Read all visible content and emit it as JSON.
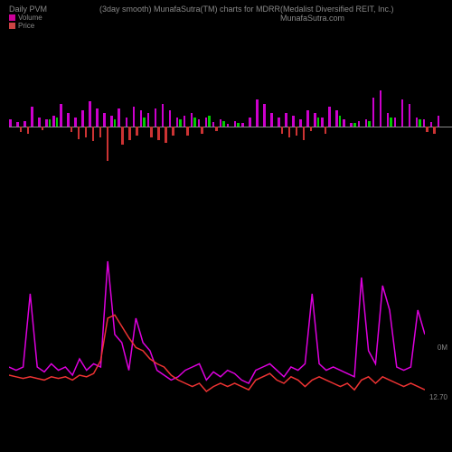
{
  "header": {
    "title_left": "Daily PVM",
    "title_center_left": "(3day smooth) MunafaSutra(TM) charts for MDRR",
    "title_center_right": "(Medalist Diversified REIT, Inc.) MunafaSutra.com"
  },
  "legend": {
    "volume": {
      "label": "Volume",
      "color": "#cc0099"
    },
    "price": {
      "label": "Price",
      "color": "#cc4444"
    }
  },
  "bar_chart": {
    "baseline_color": "#888888",
    "background": "#000000",
    "bars": [
      {
        "magenta": 8,
        "green": 0,
        "red": 0
      },
      {
        "magenta": 5,
        "green": 0,
        "red": 6
      },
      {
        "magenta": 6,
        "green": 0,
        "red": 8
      },
      {
        "magenta": 22,
        "green": 0,
        "red": 0
      },
      {
        "magenta": 10,
        "green": 0,
        "red": 4
      },
      {
        "magenta": 8,
        "green": 8,
        "red": 0
      },
      {
        "magenta": 12,
        "green": 10,
        "red": 0
      },
      {
        "magenta": 25,
        "green": 0,
        "red": 0
      },
      {
        "magenta": 15,
        "green": 0,
        "red": 6
      },
      {
        "magenta": 10,
        "green": 0,
        "red": 14
      },
      {
        "magenta": 18,
        "green": 0,
        "red": 12
      },
      {
        "magenta": 28,
        "green": 0,
        "red": 16
      },
      {
        "magenta": 20,
        "green": 0,
        "red": 12
      },
      {
        "magenta": 15,
        "green": 0,
        "red": 38
      },
      {
        "magenta": 12,
        "green": 8,
        "red": 0
      },
      {
        "magenta": 20,
        "green": 0,
        "red": 20
      },
      {
        "magenta": 10,
        "green": 0,
        "red": 15
      },
      {
        "magenta": 22,
        "green": 0,
        "red": 10
      },
      {
        "magenta": 18,
        "green": 10,
        "red": 0
      },
      {
        "magenta": 15,
        "green": 0,
        "red": 12
      },
      {
        "magenta": 20,
        "green": 0,
        "red": 15
      },
      {
        "magenta": 25,
        "green": 0,
        "red": 18
      },
      {
        "magenta": 18,
        "green": 0,
        "red": 10
      },
      {
        "magenta": 10,
        "green": 8,
        "red": 0
      },
      {
        "magenta": 12,
        "green": 0,
        "red": 10
      },
      {
        "magenta": 15,
        "green": 10,
        "red": 0
      },
      {
        "magenta": 8,
        "green": 0,
        "red": 8
      },
      {
        "magenta": 10,
        "green": 12,
        "red": 0
      },
      {
        "magenta": 5,
        "green": 0,
        "red": 5
      },
      {
        "magenta": 8,
        "green": 6,
        "red": 0
      },
      {
        "magenta": 3,
        "green": 0,
        "red": 0
      },
      {
        "magenta": 6,
        "green": 4,
        "red": 0
      },
      {
        "magenta": 4,
        "green": 0,
        "red": 0
      },
      {
        "magenta": 10,
        "green": 0,
        "red": 0
      },
      {
        "magenta": 30,
        "green": 0,
        "red": 0
      },
      {
        "magenta": 25,
        "green": 0,
        "red": 0
      },
      {
        "magenta": 15,
        "green": 0,
        "red": 0
      },
      {
        "magenta": 10,
        "green": 0,
        "red": 8
      },
      {
        "magenta": 15,
        "green": 0,
        "red": 12
      },
      {
        "magenta": 12,
        "green": 0,
        "red": 10
      },
      {
        "magenta": 8,
        "green": 0,
        "red": 15
      },
      {
        "magenta": 18,
        "green": 0,
        "red": 5
      },
      {
        "magenta": 15,
        "green": 10,
        "red": 0
      },
      {
        "magenta": 10,
        "green": 0,
        "red": 8
      },
      {
        "magenta": 22,
        "green": 0,
        "red": 0
      },
      {
        "magenta": 18,
        "green": 12,
        "red": 0
      },
      {
        "magenta": 8,
        "green": 0,
        "red": 0
      },
      {
        "magenta": 4,
        "green": 4,
        "red": 0
      },
      {
        "magenta": 6,
        "green": 0,
        "red": 0
      },
      {
        "magenta": 8,
        "green": 6,
        "red": 0
      },
      {
        "magenta": 32,
        "green": 0,
        "red": 0
      },
      {
        "magenta": 40,
        "green": 0,
        "red": 0
      },
      {
        "magenta": 15,
        "green": 10,
        "red": 0
      },
      {
        "magenta": 10,
        "green": 0,
        "red": 0
      },
      {
        "magenta": 30,
        "green": 0,
        "red": 0
      },
      {
        "magenta": 25,
        "green": 0,
        "red": 0
      },
      {
        "magenta": 10,
        "green": 8,
        "red": 0
      },
      {
        "magenta": 8,
        "green": 0,
        "red": 6
      },
      {
        "magenta": 5,
        "green": 0,
        "red": 8
      },
      {
        "magenta": 12,
        "green": 0,
        "red": 0
      }
    ],
    "colors": {
      "magenta": "#cc00cc",
      "green": "#00cc00",
      "red": "#cc3333"
    }
  },
  "line_chart": {
    "volume_color": "#dd00dd",
    "price_color": "#ee3333",
    "line_width": 1.5,
    "volume_points": [
      70,
      72,
      70,
      25,
      70,
      73,
      68,
      72,
      70,
      75,
      65,
      72,
      68,
      70,
      5,
      50,
      55,
      72,
      40,
      55,
      60,
      72,
      75,
      78,
      76,
      72,
      70,
      68,
      78,
      73,
      76,
      72,
      74,
      78,
      80,
      72,
      70,
      68,
      72,
      76,
      70,
      72,
      68,
      25,
      68,
      72,
      70,
      72,
      74,
      76,
      15,
      60,
      68,
      20,
      35,
      70,
      72,
      70,
      35,
      50
    ],
    "price_points": [
      75,
      76,
      77,
      76,
      77,
      78,
      76,
      77,
      76,
      78,
      75,
      76,
      74,
      66,
      40,
      38,
      45,
      52,
      58,
      60,
      65,
      68,
      70,
      75,
      78,
      80,
      82,
      80,
      85,
      82,
      80,
      82,
      80,
      82,
      84,
      78,
      76,
      74,
      78,
      80,
      76,
      78,
      82,
      78,
      76,
      78,
      80,
      82,
      80,
      84,
      78,
      76,
      80,
      76,
      78,
      80,
      82,
      80,
      82,
      84
    ],
    "axis_labels": {
      "volume_label": "0M",
      "price_label": "12.70"
    }
  }
}
